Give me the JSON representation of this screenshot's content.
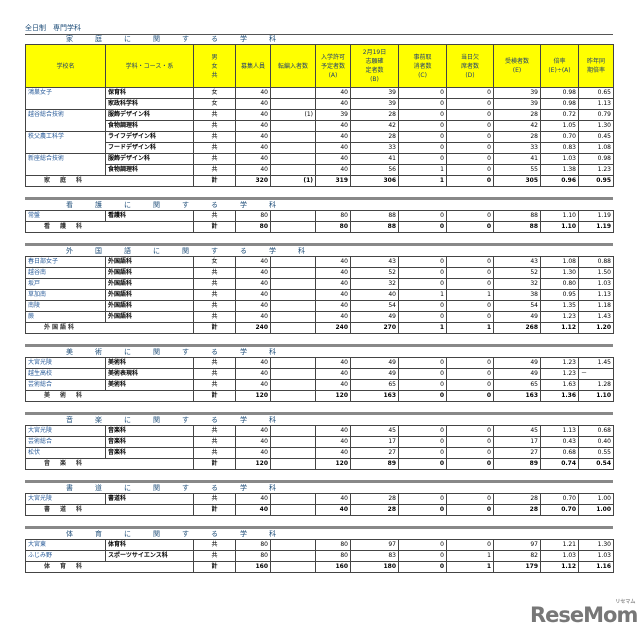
{
  "doc_title": "全日制　専門学科",
  "headers": [
    "学校名",
    "学科・コース・系",
    "男\n女\n共",
    "募集人員",
    "転編入者数",
    "入学許可\n予定者数\n(A)",
    "2月19日\n志願確\n定者数\n(B)",
    "事前取\n消者数\n(C)",
    "当日欠\n席者数\n(D)",
    "受検者数\n(E)",
    "倍率\n(E)÷(A)",
    "昨年同\n期倍率"
  ],
  "sections": [
    {
      "title": [
        "家",
        "庭",
        "に",
        "関",
        "す",
        "る",
        "学",
        "科"
      ],
      "groups": [
        {
          "school": "鴻巣女子",
          "rows": [
            [
              "保育科",
              "女",
              "40",
              "",
              "40",
              "39",
              "0",
              "0",
              "39",
              "0.98",
              "0.65"
            ],
            [
              "家政科学科",
              "女",
              "40",
              "",
              "40",
              "39",
              "0",
              "0",
              "39",
              "0.98",
              "1.13"
            ]
          ]
        },
        {
          "school": "越谷総合技術",
          "rows": [
            [
              "服飾デザイン科",
              "共",
              "40",
              "(1)",
              "39",
              "28",
              "0",
              "0",
              "28",
              "0.72",
              "0.79"
            ],
            [
              "食物調理科",
              "共",
              "40",
              "",
              "40",
              "42",
              "0",
              "0",
              "42",
              "1.05",
              "1.30"
            ]
          ]
        },
        {
          "school": "秩父農工科学",
          "rows": [
            [
              "ライフデザイン科",
              "共",
              "40",
              "",
              "40",
              "28",
              "0",
              "0",
              "28",
              "0.70",
              "0.45"
            ],
            [
              "フードデザイン科",
              "共",
              "40",
              "",
              "40",
              "33",
              "0",
              "0",
              "33",
              "0.83",
              "1.08"
            ]
          ]
        },
        {
          "school": "新座総合技術",
          "rows": [
            [
              "服飾デザイン科",
              "共",
              "40",
              "",
              "40",
              "41",
              "0",
              "0",
              "41",
              "1.03",
              "0.98"
            ],
            [
              "食物調理科",
              "共",
              "40",
              "",
              "40",
              "56",
              "1",
              "0",
              "55",
              "1.38",
              "1.23"
            ]
          ]
        }
      ],
      "total": [
        "家　庭　科",
        "計",
        "320",
        "(1)",
        "319",
        "306",
        "1",
        "0",
        "305",
        "0.96",
        "0.95"
      ]
    },
    {
      "title": [
        "看",
        "護",
        "に",
        "関",
        "す",
        "る",
        "学",
        "科"
      ],
      "groups": [
        {
          "school": "常盤",
          "rows": [
            [
              "看護科",
              "共",
              "80",
              "",
              "80",
              "88",
              "0",
              "0",
              "88",
              "1.10",
              "1.19"
            ]
          ]
        }
      ],
      "total": [
        "看　護　科",
        "計",
        "80",
        "",
        "80",
        "88",
        "0",
        "0",
        "88",
        "1.10",
        "1.19"
      ]
    },
    {
      "title": [
        "外",
        "国",
        "語",
        "に",
        "関",
        "す",
        "る",
        "学",
        "科"
      ],
      "groups": [
        {
          "school": "春日部女子",
          "rows": [
            [
              "外国語科",
              "女",
              "40",
              "",
              "40",
              "43",
              "0",
              "0",
              "43",
              "1.08",
              "0.88"
            ]
          ]
        },
        {
          "school": "越谷南",
          "rows": [
            [
              "外国語科",
              "共",
              "40",
              "",
              "40",
              "52",
              "0",
              "0",
              "52",
              "1.30",
              "1.50"
            ]
          ]
        },
        {
          "school": "坂戸",
          "rows": [
            [
              "外国語科",
              "共",
              "40",
              "",
              "40",
              "32",
              "0",
              "0",
              "32",
              "0.80",
              "1.03"
            ]
          ]
        },
        {
          "school": "草加南",
          "rows": [
            [
              "外国語科",
              "共",
              "40",
              "",
              "40",
              "40",
              "1",
              "1",
              "38",
              "0.95",
              "1.13"
            ]
          ]
        },
        {
          "school": "南陵",
          "rows": [
            [
              "外国語科",
              "共",
              "40",
              "",
              "40",
              "54",
              "0",
              "0",
              "54",
              "1.35",
              "1.18"
            ]
          ]
        },
        {
          "school": "蕨",
          "rows": [
            [
              "外国語科",
              "共",
              "40",
              "",
              "40",
              "49",
              "0",
              "0",
              "49",
              "1.23",
              "1.43"
            ]
          ]
        }
      ],
      "total": [
        "外国語科",
        "計",
        "240",
        "",
        "240",
        "270",
        "1",
        "1",
        "268",
        "1.12",
        "1.20"
      ]
    },
    {
      "title": [
        "美",
        "術",
        "に",
        "関",
        "す",
        "る",
        "学",
        "科"
      ],
      "groups": [
        {
          "school": "大宮光陵",
          "rows": [
            [
              "美術科",
              "共",
              "40",
              "",
              "40",
              "49",
              "0",
              "0",
              "49",
              "1.23",
              "1.45"
            ]
          ]
        },
        {
          "school": "越生高校",
          "rows": [
            [
              "美術表現科",
              "共",
              "40",
              "",
              "40",
              "49",
              "0",
              "0",
              "49",
              "1.23",
              "－"
            ]
          ]
        },
        {
          "school": "芸術総合",
          "rows": [
            [
              "美術科",
              "共",
              "40",
              "",
              "40",
              "65",
              "0",
              "0",
              "65",
              "1.63",
              "1.28"
            ]
          ]
        }
      ],
      "total": [
        "美　術　科",
        "計",
        "120",
        "",
        "120",
        "163",
        "0",
        "0",
        "163",
        "1.36",
        "1.10"
      ]
    },
    {
      "title": [
        "音",
        "楽",
        "に",
        "関",
        "す",
        "る",
        "学",
        "科"
      ],
      "groups": [
        {
          "school": "大宮光陵",
          "rows": [
            [
              "音楽科",
              "共",
              "40",
              "",
              "40",
              "45",
              "0",
              "0",
              "45",
              "1.13",
              "0.68"
            ]
          ]
        },
        {
          "school": "芸術総合",
          "rows": [
            [
              "音楽科",
              "共",
              "40",
              "",
              "40",
              "17",
              "0",
              "0",
              "17",
              "0.43",
              "0.40"
            ]
          ]
        },
        {
          "school": "松伏",
          "rows": [
            [
              "音楽科",
              "共",
              "40",
              "",
              "40",
              "27",
              "0",
              "0",
              "27",
              "0.68",
              "0.55"
            ]
          ]
        }
      ],
      "total": [
        "音　楽　科",
        "計",
        "120",
        "",
        "120",
        "89",
        "0",
        "0",
        "89",
        "0.74",
        "0.54"
      ]
    },
    {
      "title": [
        "書",
        "道",
        "に",
        "関",
        "す",
        "る",
        "学",
        "科"
      ],
      "groups": [
        {
          "school": "大宮光陵",
          "rows": [
            [
              "書道科",
              "共",
              "40",
              "",
              "40",
              "28",
              "0",
              "0",
              "28",
              "0.70",
              "1.00"
            ]
          ]
        }
      ],
      "total": [
        "書　道　科",
        "計",
        "40",
        "",
        "40",
        "28",
        "0",
        "0",
        "28",
        "0.70",
        "1.00"
      ]
    },
    {
      "title": [
        "体",
        "育",
        "に",
        "関",
        "す",
        "る",
        "学",
        "科"
      ],
      "groups": [
        {
          "school": "大宮東",
          "rows": [
            [
              "体育科",
              "共",
              "80",
              "",
              "80",
              "97",
              "0",
              "0",
              "97",
              "1.21",
              "1.30"
            ]
          ]
        },
        {
          "school": "ふじみ野",
          "rows": [
            [
              "スポーツサイエンス科",
              "共",
              "80",
              "",
              "80",
              "83",
              "0",
              "1",
              "82",
              "1.03",
              "1.03"
            ]
          ]
        }
      ],
      "total": [
        "体　育　科",
        "計",
        "160",
        "",
        "160",
        "180",
        "0",
        "1",
        "179",
        "1.12",
        "1.16"
      ]
    }
  ],
  "logo": {
    "text": "ReseMom",
    "sub": "リセマム"
  },
  "colors": {
    "header_bg": "#ffff00",
    "school_text": "#2a5c9a",
    "section_title": "#1f4e79"
  }
}
